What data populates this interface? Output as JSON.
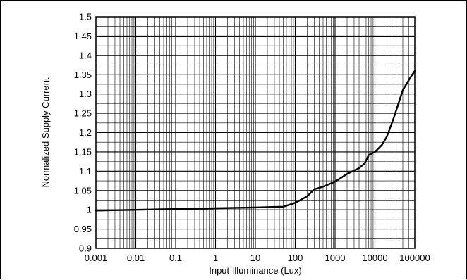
{
  "chart_data": {
    "type": "line",
    "title": "",
    "xlabel": "Input Illuminance (Lux)",
    "ylabel": "Normalized Supply Current",
    "xscale": "log",
    "xlim": [
      0.001,
      100000
    ],
    "ylim": [
      0.9,
      1.5
    ],
    "grid": true,
    "x_tick_labels": [
      "0.001",
      "0.01",
      "0.1",
      "1",
      "10",
      "100",
      "1000",
      "10000",
      "100000"
    ],
    "y_tick_labels": [
      "0.9",
      "0.95",
      "1",
      "1.05",
      "1.1",
      "1.15",
      "1.2",
      "1.25",
      "1.3",
      "1.35",
      "1.4",
      "1.45",
      "1.5"
    ],
    "series": [
      {
        "color": "#000000",
        "x": [
          0.001,
          0.01,
          0.1,
          1,
          10,
          50,
          100,
          200,
          300,
          500,
          1000,
          2000,
          4000,
          5500,
          7000,
          8000,
          10000,
          15000,
          20000,
          30000,
          50000,
          80000,
          100000
        ],
        "y": [
          0.998,
          1.0,
          1.002,
          1.004,
          1.006,
          1.008,
          1.018,
          1.035,
          1.053,
          1.06,
          1.073,
          1.093,
          1.108,
          1.12,
          1.142,
          1.145,
          1.15,
          1.168,
          1.19,
          1.24,
          1.31,
          1.345,
          1.36
        ]
      }
    ]
  }
}
